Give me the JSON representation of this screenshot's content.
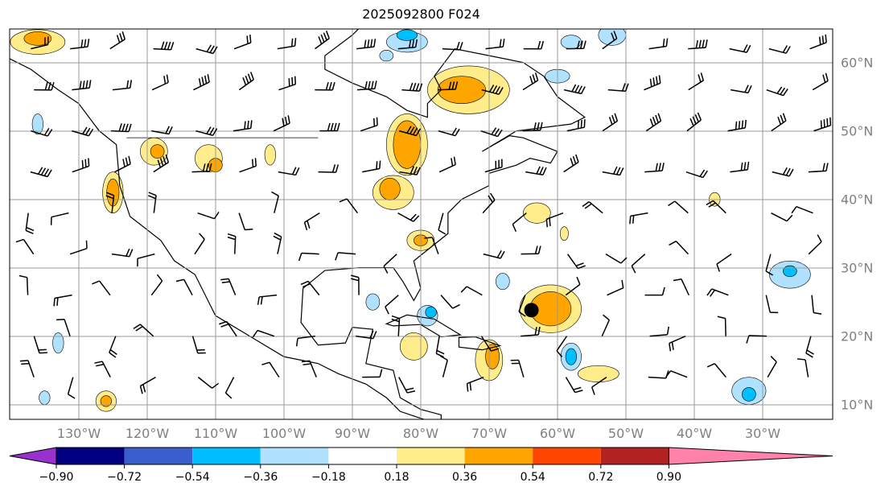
{
  "title": "2025092800 F024",
  "lon_labels": [
    "130°W",
    "120°W",
    "110°W",
    "100°W",
    "90°W",
    "80°W",
    "70°W",
    "60°W",
    "50°W",
    "40°W",
    "30°W"
  ],
  "lat_labels": [
    "60°N",
    "50°N",
    "40°N",
    "30°N",
    "20°N",
    "10°N"
  ],
  "colorbar": {
    "ticks": [
      "−0.90",
      "−0.72",
      "−0.54",
      "−0.36",
      "−0.18",
      "0.18",
      "0.36",
      "0.54",
      "0.72",
      "0.90"
    ],
    "colors": [
      "#9932cc",
      "#000080",
      "#3a5fcd",
      "#00bfff",
      "#b0e2ff",
      "#ffffff",
      "#ffec8b",
      "#ffa500",
      "#ff4500",
      "#b22222",
      "#ff82ab"
    ]
  }
}
